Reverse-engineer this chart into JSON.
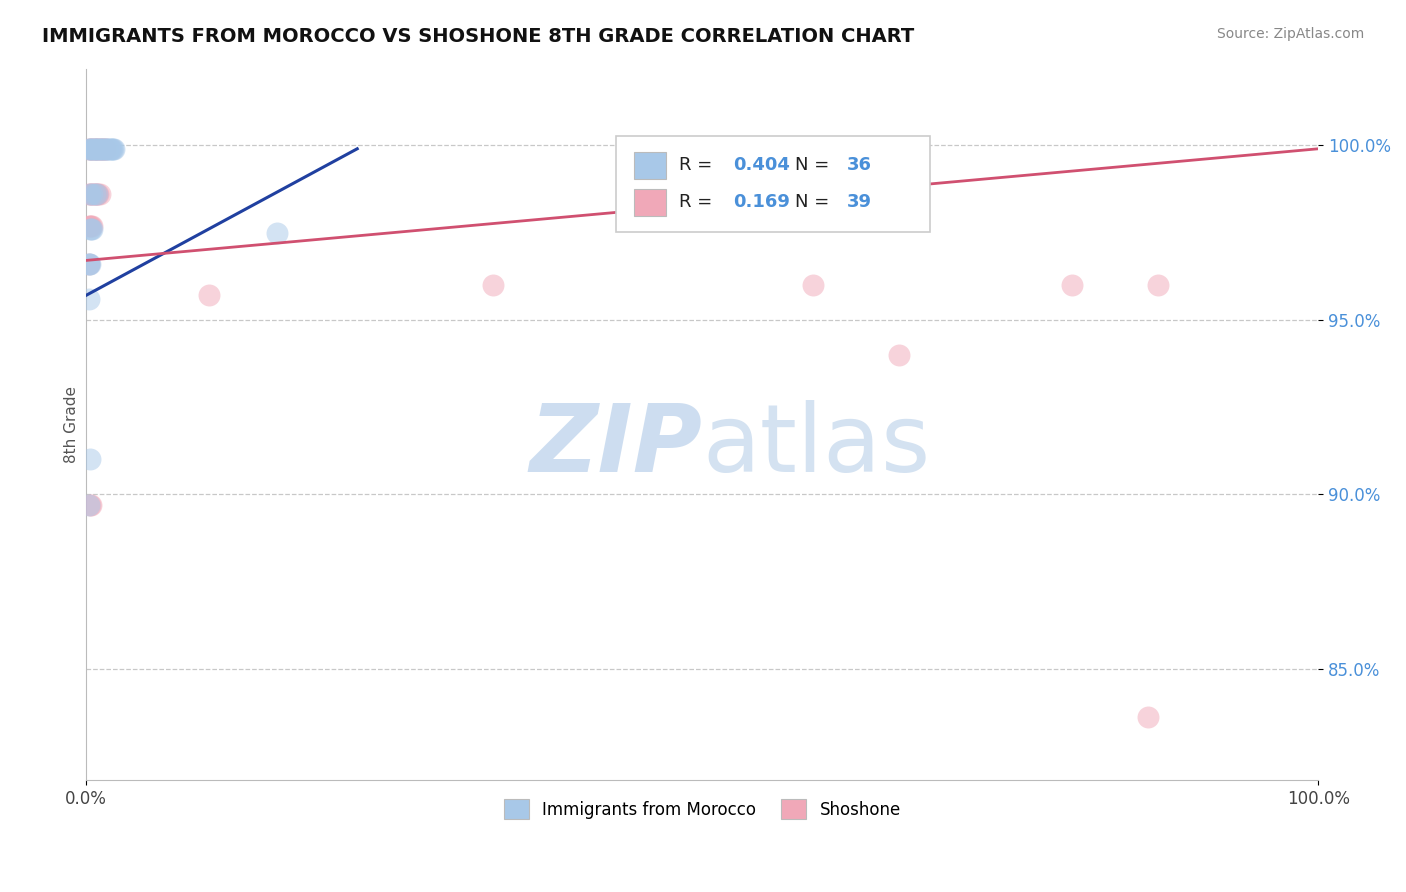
{
  "title": "IMMIGRANTS FROM MOROCCO VS SHOSHONE 8TH GRADE CORRELATION CHART",
  "source_text": "Source: ZipAtlas.com",
  "ylabel": "8th Grade",
  "xmin": 0.0,
  "xmax": 1.0,
  "ymin": 0.818,
  "ymax": 1.022,
  "yticks": [
    0.85,
    0.9,
    0.95,
    1.0
  ],
  "ytick_labels": [
    "85.0%",
    "90.0%",
    "95.0%",
    "100.0%"
  ],
  "R_blue": 0.404,
  "N_blue": 36,
  "R_pink": 0.169,
  "N_pink": 39,
  "blue_color": "#a8c8e8",
  "pink_color": "#f0a8b8",
  "trend_blue": "#2040a0",
  "trend_pink": "#d05070",
  "watermark_zip": "ZIP",
  "watermark_atlas": "atlas",
  "blue_scatter_x": [
    0.002,
    0.003,
    0.004,
    0.005,
    0.006,
    0.007,
    0.008,
    0.009,
    0.01,
    0.011,
    0.012,
    0.013,
    0.014,
    0.015,
    0.016,
    0.017,
    0.018,
    0.019,
    0.02,
    0.021,
    0.022,
    0.023,
    0.003,
    0.005,
    0.007,
    0.009,
    0.003,
    0.004,
    0.005,
    0.002,
    0.003,
    0.002,
    0.155,
    0.002,
    0.003,
    0.002
  ],
  "blue_scatter_y": [
    0.999,
    0.999,
    0.999,
    0.999,
    0.999,
    0.999,
    0.999,
    0.999,
    0.999,
    0.999,
    0.999,
    0.999,
    0.999,
    0.999,
    0.999,
    0.999,
    0.999,
    0.999,
    0.999,
    0.999,
    0.999,
    0.999,
    0.986,
    0.986,
    0.986,
    0.986,
    0.976,
    0.976,
    0.976,
    0.966,
    0.966,
    0.966,
    0.975,
    0.956,
    0.91,
    0.897
  ],
  "pink_scatter_x": [
    0.002,
    0.003,
    0.004,
    0.005,
    0.006,
    0.007,
    0.008,
    0.009,
    0.01,
    0.011,
    0.012,
    0.013,
    0.014,
    0.015,
    0.016,
    0.002,
    0.003,
    0.004,
    0.005,
    0.006,
    0.007,
    0.008,
    0.009,
    0.01,
    0.011,
    0.002,
    0.003,
    0.004,
    0.005,
    0.002,
    0.1,
    0.33,
    0.59,
    0.66,
    0.8,
    0.87,
    0.003,
    0.004,
    0.862
  ],
  "pink_scatter_y": [
    0.999,
    0.999,
    0.999,
    0.999,
    0.999,
    0.999,
    0.999,
    0.999,
    0.999,
    0.999,
    0.999,
    0.999,
    0.999,
    0.999,
    0.999,
    0.986,
    0.986,
    0.986,
    0.986,
    0.986,
    0.986,
    0.986,
    0.986,
    0.986,
    0.986,
    0.977,
    0.977,
    0.977,
    0.977,
    0.966,
    0.957,
    0.96,
    0.96,
    0.94,
    0.96,
    0.96,
    0.897,
    0.897,
    0.836
  ],
  "trend_blue_x0": 0.0,
  "trend_blue_y0": 0.957,
  "trend_blue_x1": 0.22,
  "trend_blue_y1": 0.999,
  "trend_pink_x0": 0.0,
  "trend_pink_y0": 0.967,
  "trend_pink_x1": 1.0,
  "trend_pink_y1": 0.999
}
